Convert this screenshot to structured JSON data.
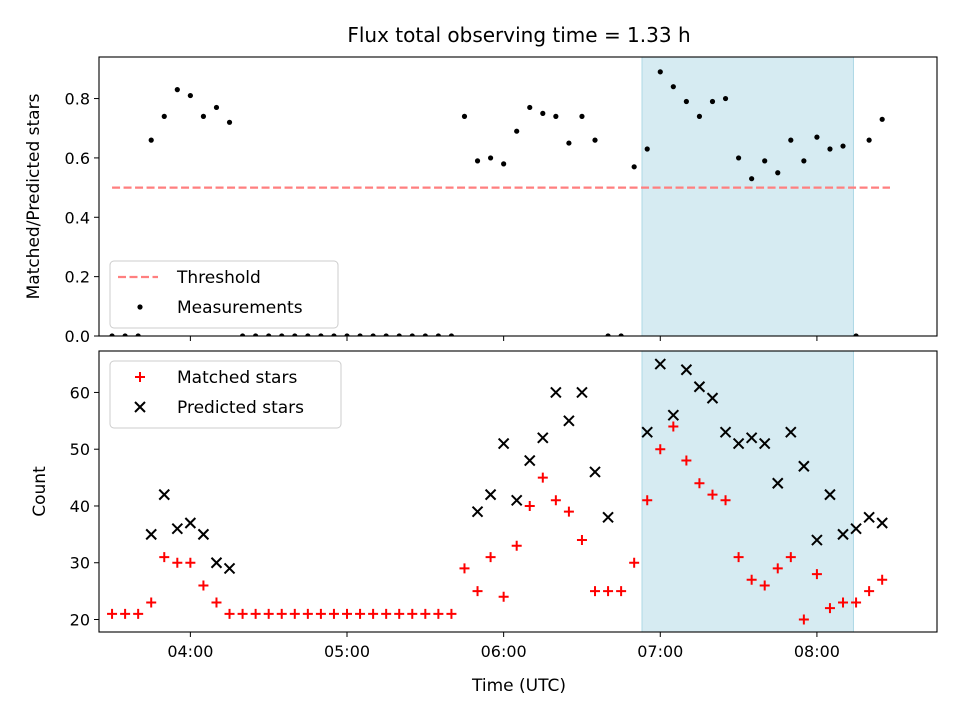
{
  "figure": {
    "title": "Flux total observing time = 1.33 h",
    "xlabel": "Time (UTC)",
    "shaded_span_color": "#add8e6"
  },
  "chart_data": [
    {
      "type": "scatter",
      "panel": "top",
      "ylabel": "Matched/Predicted stars",
      "xlim": [
        "03:25",
        "08:46"
      ],
      "ylim": [
        0,
        0.94
      ],
      "yticks": [
        "0.0",
        "0.2",
        "0.4",
        "0.6",
        "0.8"
      ],
      "ytick_values": [
        0,
        0.2,
        0.4,
        0.6,
        0.8
      ],
      "xticks": [
        "04:00",
        "05:00",
        "06:00",
        "07:00",
        "08:00"
      ],
      "show_xtick_labels": false,
      "shaded_span": [
        "06:53",
        "08:14"
      ],
      "threshold": {
        "name": "Threshold",
        "value": 0.5,
        "x_range": [
          "03:30",
          "08:28"
        ],
        "color": "#ff7f7f",
        "style": "dashed"
      },
      "series": [
        {
          "name": "Measurements",
          "color": "#000000",
          "marker": "dot",
          "x": [
            "03:30",
            "03:35",
            "03:40",
            "03:45",
            "03:50",
            "03:55",
            "04:00",
            "04:05",
            "04:10",
            "04:15",
            "04:20",
            "04:25",
            "04:30",
            "04:35",
            "04:40",
            "04:45",
            "04:50",
            "04:55",
            "05:00",
            "05:05",
            "05:10",
            "05:15",
            "05:20",
            "05:25",
            "05:30",
            "05:35",
            "05:40",
            "05:45",
            "05:50",
            "05:55",
            "06:00",
            "06:05",
            "06:10",
            "06:15",
            "06:20",
            "06:25",
            "06:30",
            "06:35",
            "06:40",
            "06:45",
            "06:50",
            "06:55",
            "07:00",
            "07:05",
            "07:10",
            "07:15",
            "07:20",
            "07:25",
            "07:30",
            "07:35",
            "07:40",
            "07:45",
            "07:50",
            "07:55",
            "08:00",
            "08:05",
            "08:10",
            "08:15",
            "08:20",
            "08:25"
          ],
          "y": [
            0,
            0,
            0,
            0.66,
            0.74,
            0.83,
            0.81,
            0.74,
            0.77,
            0.72,
            0,
            0,
            0,
            0,
            0,
            0,
            0,
            0,
            0,
            0,
            0,
            0,
            0,
            0,
            0,
            0,
            0,
            0.74,
            0.59,
            0.6,
            0.58,
            0.69,
            0.77,
            0.75,
            0.74,
            0.65,
            0.74,
            0.66,
            0,
            0,
            0.57,
            0.63,
            0.89,
            0.84,
            0.79,
            0.74,
            0.79,
            0.8,
            0.6,
            0.53,
            0.59,
            0.55,
            0.66,
            0.59,
            0.67,
            0.63,
            0.64,
            0,
            0.66,
            0.73
          ]
        }
      ]
    },
    {
      "type": "scatter",
      "panel": "bottom",
      "ylabel": "Count",
      "xlim": [
        "03:25",
        "08:46"
      ],
      "ylim": [
        17.8,
        67.3
      ],
      "yticks": [
        "20",
        "30",
        "40",
        "50",
        "60"
      ],
      "ytick_values": [
        20,
        30,
        40,
        50,
        60
      ],
      "xticks": [
        "04:00",
        "05:00",
        "06:00",
        "07:00",
        "08:00"
      ],
      "show_xtick_labels": true,
      "shaded_span": [
        "06:53",
        "08:14"
      ],
      "series": [
        {
          "name": "Matched stars",
          "color": "#ff0000",
          "marker": "plus",
          "x": [
            "03:30",
            "03:35",
            "03:40",
            "03:45",
            "03:50",
            "03:55",
            "04:00",
            "04:05",
            "04:10",
            "04:15",
            "04:20",
            "04:25",
            "04:30",
            "04:35",
            "04:40",
            "04:45",
            "04:50",
            "04:55",
            "05:00",
            "05:05",
            "05:10",
            "05:15",
            "05:20",
            "05:25",
            "05:30",
            "05:35",
            "05:40",
            "05:45",
            "05:50",
            "05:55",
            "06:00",
            "06:05",
            "06:10",
            "06:15",
            "06:20",
            "06:25",
            "06:30",
            "06:35",
            "06:40",
            "06:45",
            "06:50",
            "06:55",
            "07:00",
            "07:05",
            "07:10",
            "07:15",
            "07:20",
            "07:25",
            "07:30",
            "07:35",
            "07:40",
            "07:45",
            "07:50",
            "07:55",
            "08:00",
            "08:05",
            "08:10",
            "08:15",
            "08:20",
            "08:25"
          ],
          "y": [
            21,
            21,
            21,
            23,
            31,
            30,
            30,
            26,
            23,
            21,
            21,
            21,
            21,
            21,
            21,
            21,
            21,
            21,
            21,
            21,
            21,
            21,
            21,
            21,
            21,
            21,
            21,
            29,
            25,
            31,
            24,
            33,
            40,
            45,
            41,
            39,
            34,
            25,
            25,
            25,
            30,
            41,
            50,
            54,
            48,
            44,
            42,
            41,
            31,
            27,
            26,
            29,
            31,
            20,
            28,
            22,
            23,
            23,
            25,
            27
          ]
        },
        {
          "name": "Predicted stars",
          "color": "#000000",
          "marker": "x",
          "x": [
            "03:45",
            "03:50",
            "03:55",
            "04:00",
            "04:05",
            "04:10",
            "04:15",
            "05:50",
            "05:55",
            "06:00",
            "06:05",
            "06:10",
            "06:15",
            "06:20",
            "06:25",
            "06:30",
            "06:35",
            "06:40",
            "06:55",
            "07:00",
            "07:05",
            "07:10",
            "07:15",
            "07:20",
            "07:25",
            "07:30",
            "07:35",
            "07:40",
            "07:45",
            "07:50",
            "07:55",
            "08:00",
            "08:05",
            "08:10",
            "08:15",
            "08:20",
            "08:25"
          ],
          "y": [
            35,
            42,
            36,
            37,
            35,
            30,
            29,
            39,
            42,
            51,
            41,
            48,
            52,
            60,
            55,
            60,
            46,
            38,
            53,
            65,
            56,
            64,
            61,
            59,
            53,
            51,
            52,
            51,
            44,
            53,
            47,
            34,
            42,
            35,
            36,
            38,
            37
          ]
        }
      ]
    }
  ]
}
